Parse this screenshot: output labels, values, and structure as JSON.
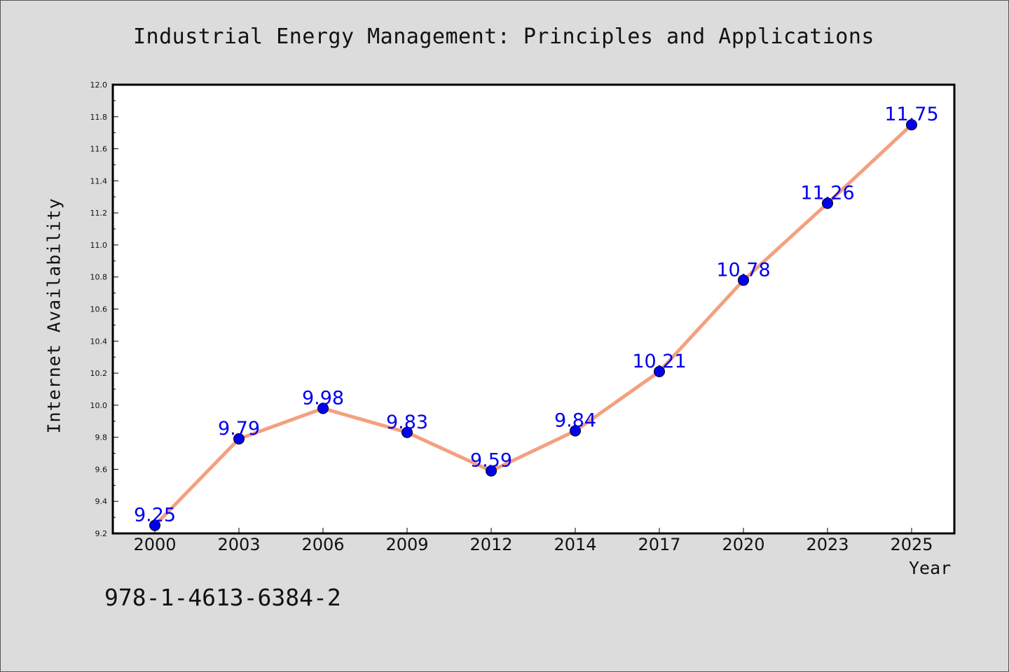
{
  "chart_data": {
    "type": "line",
    "title": "Industrial Energy Management: Principles and Applications",
    "xlabel": "Year",
    "ylabel": "Internet Availability",
    "categories": [
      "2000",
      "2003",
      "2006",
      "2009",
      "2012",
      "2014",
      "2017",
      "2020",
      "2023",
      "2025"
    ],
    "series": [
      {
        "values": [
          9.25,
          9.79,
          9.98,
          9.83,
          9.59,
          9.84,
          10.21,
          10.78,
          11.26,
          11.75
        ]
      }
    ],
    "data_labels": [
      "9.25",
      "9.79",
      "9.98",
      "9.83",
      "9.59",
      "9.84",
      "10.21",
      "10.78",
      "11.26",
      "11.75"
    ],
    "ylim": [
      9.2,
      12.0
    ],
    "yticks": [
      "9.2",
      "9.4",
      "9.6",
      "9.8",
      "10.0",
      "10.2",
      "10.4",
      "10.6",
      "10.8",
      "11.0",
      "11.2",
      "11.4",
      "11.6",
      "11.8",
      "12.0"
    ],
    "grid": false,
    "legend": "none",
    "colors": {
      "line": "#f4a07f",
      "marker": "#0000ee",
      "label": "#0000ee",
      "background": "#dcdcdc",
      "plot_background": "#ffffff"
    }
  },
  "footer": {
    "isbn": "978-1-4613-6384-2"
  }
}
